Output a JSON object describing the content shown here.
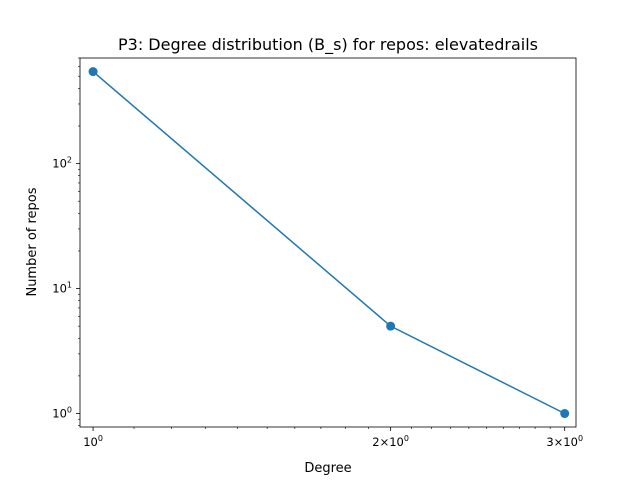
{
  "chart_data": {
    "type": "line",
    "title": "P3: Degree distribution (B_s) for repos: elevatedrails",
    "xlabel": "Degree",
    "ylabel": "Number of repos",
    "x_scale": "log",
    "y_scale": "log",
    "xlim": [
      0.97,
      3.08
    ],
    "ylim": [
      0.78,
      700
    ],
    "grid": false,
    "color": "#1f77b4",
    "series": [
      {
        "x": [
          1,
          2,
          3
        ],
        "y": [
          545,
          5,
          1
        ]
      }
    ],
    "x_ticks": [
      {
        "value": 1,
        "mant": "",
        "base": "10",
        "exp": "0"
      },
      {
        "value": 2,
        "mant": "2×",
        "base": "10",
        "exp": "0"
      },
      {
        "value": 3,
        "mant": "3×",
        "base": "10",
        "exp": "0"
      }
    ],
    "y_ticks": [
      {
        "value": 1,
        "base": "10",
        "exp": "0"
      },
      {
        "value": 10,
        "base": "10",
        "exp": "1"
      },
      {
        "value": 100,
        "base": "10",
        "exp": "2"
      }
    ]
  }
}
